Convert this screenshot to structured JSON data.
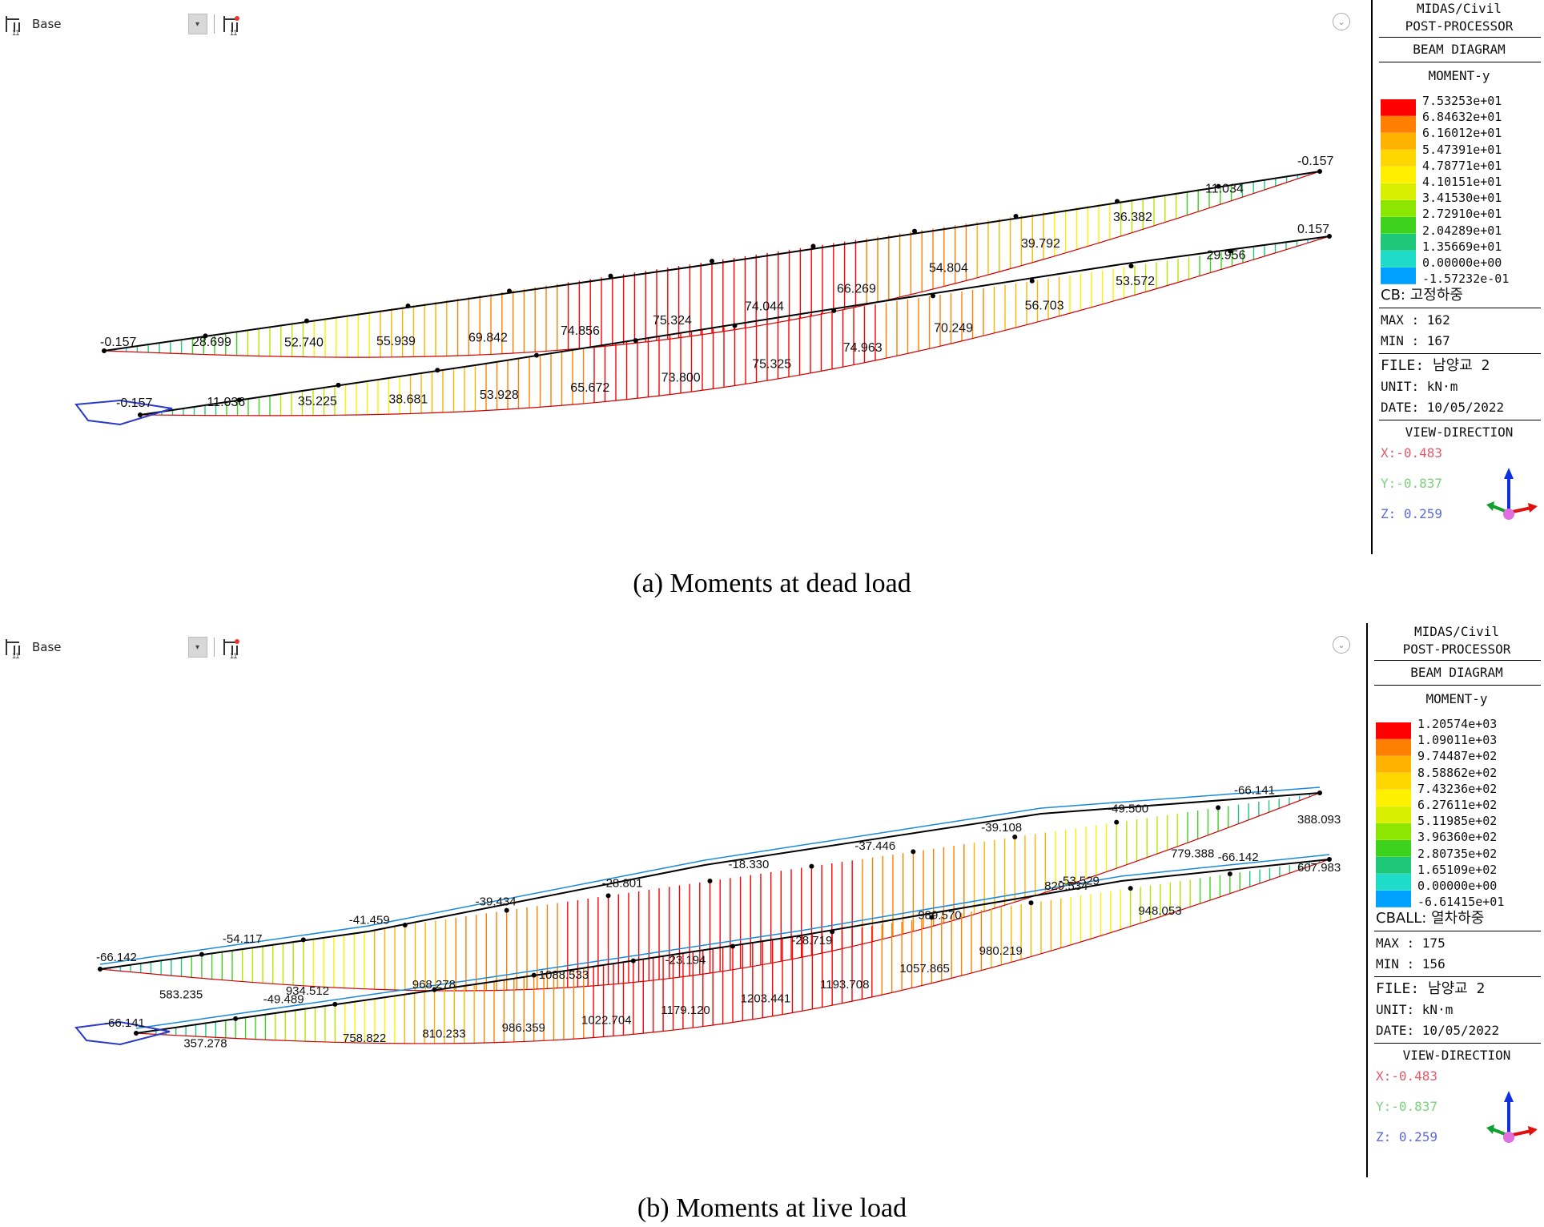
{
  "toolbar": {
    "view_label": "Base",
    "dropdown_icon": "dropdown-arrow-icon"
  },
  "panels": [
    {
      "caption": "(a) Moments at dead load",
      "legend": {
        "app": "MIDAS/Civil",
        "module": "POST-PROCESSOR",
        "diagram": "BEAM DIAGRAM",
        "component": "MOMENT-y",
        "scale_values": [
          "7.53253e+01",
          "6.84632e+01",
          "6.16012e+01",
          "5.47391e+01",
          "4.78771e+01",
          "4.10151e+01",
          "3.41530e+01",
          "2.72910e+01",
          "2.04289e+01",
          "1.35669e+01",
          "0.00000e+00",
          "-1.57232e-01"
        ],
        "scale_colors": [
          "#ff0000",
          "#ff7f00",
          "#ffb300",
          "#ffd600",
          "#fff000",
          "#d8f000",
          "#8ce600",
          "#3cd21e",
          "#1ec878",
          "#1edcc8",
          "#00a0ff",
          "#0050ff"
        ],
        "load_case": "CB: 고정하중",
        "max": "MAX : 162",
        "min": "MIN : 167",
        "file": "FILE: 남양교 2",
        "unit": "UNIT: kN·m",
        "date": "DATE: 10/05/2022",
        "view_direction": "VIEW-DIRECTION",
        "vx": "X:-0.483",
        "vy": "Y:-0.837",
        "vz": "Z: 0.259"
      },
      "labels_top": [
        "-0.157",
        "28.699",
        "52.740",
        "55.939",
        "69.842",
        "74.856",
        "75.324",
        "74.044",
        "66.269",
        "54.804",
        "39.792",
        "36.382",
        "11.034",
        "-0.157"
      ],
      "labels_bottom": [
        "-0.157",
        "11.036",
        "35.225",
        "38.681",
        "53.928",
        "65.672",
        "73.800",
        "75.325",
        "74.963",
        "70.249",
        "56.703",
        "53.572",
        "29.956",
        "0.157"
      ]
    },
    {
      "caption": "(b) Moments at live load",
      "legend": {
        "app": "MIDAS/Civil",
        "module": "POST-PROCESSOR",
        "diagram": "BEAM DIAGRAM",
        "component": "MOMENT-y",
        "scale_values": [
          "1.20574e+03",
          "1.09011e+03",
          "9.74487e+02",
          "8.58862e+02",
          "7.43236e+02",
          "6.27611e+02",
          "5.11985e+02",
          "3.96360e+02",
          "2.80735e+02",
          "1.65109e+02",
          "0.00000e+00",
          "-6.61415e+01"
        ],
        "scale_colors": [
          "#ff0000",
          "#ff7f00",
          "#ffb300",
          "#ffd600",
          "#fff000",
          "#d8f000",
          "#8ce600",
          "#3cd21e",
          "#1ec878",
          "#1edcc8",
          "#00a0ff",
          "#0050ff"
        ],
        "load_case": "CBALL: 열차하중",
        "max": "MAX : 175",
        "min": "MIN : 156",
        "file": "FILE: 남양교 2",
        "unit": "UNIT: kN·m",
        "date": "DATE: 10/05/2022",
        "view_direction": "VIEW-DIRECTION",
        "vx": "X:-0.483",
        "vy": "Y:-0.837",
        "vz": "Z: 0.259"
      },
      "labels_top": [
        "-66.142",
        "583.235",
        "-54.117",
        "934.512",
        "-41.459",
        "968.278",
        "-39.434",
        "1088.533",
        "-28.801",
        "-23.194",
        "-18.330",
        "-28.719",
        "-37.446",
        "989.570",
        "-39.108",
        "829.534",
        "-49.500",
        "779.388",
        "-66.141",
        "388.093"
      ],
      "labels_bottom": [
        "-66.141",
        "357.278",
        "-49.489",
        "758.822",
        "810.233",
        "986.359",
        "1022.704",
        "1179.120",
        "1203.441",
        "1193.708",
        "1057.865",
        "980.219",
        "-53.529",
        "948.053",
        "-66.142",
        "607.983"
      ]
    }
  ]
}
